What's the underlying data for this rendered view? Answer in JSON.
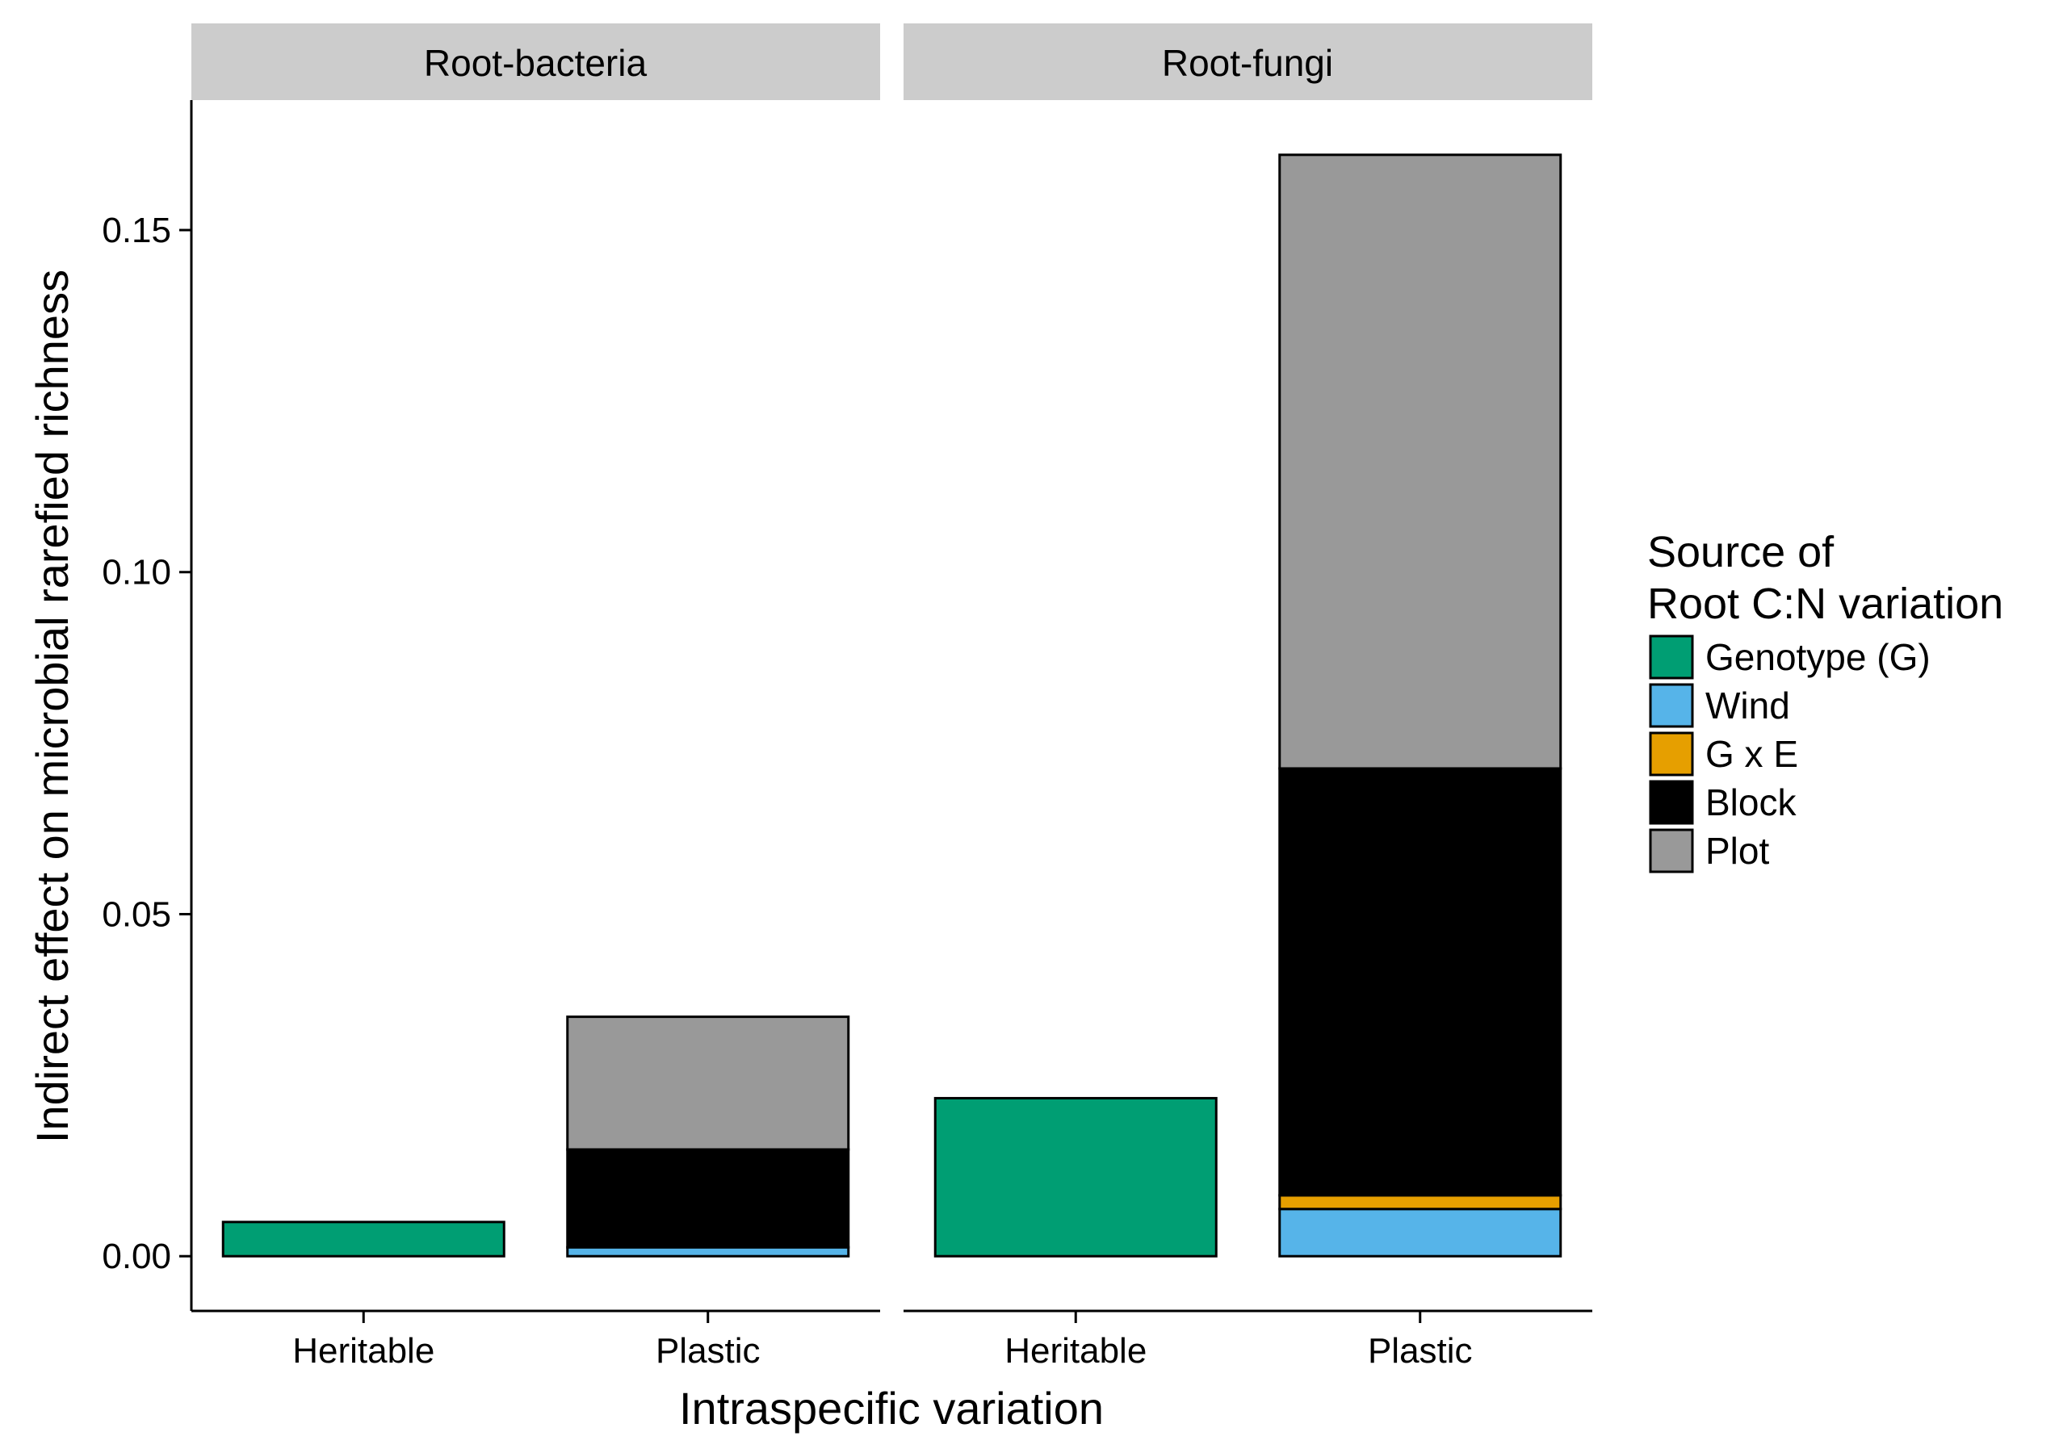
{
  "chart_data": {
    "type": "bar",
    "stacked": true,
    "xlabel": "Intraspecific variation",
    "ylabel": "Indirect effect on microbial rarefied richness",
    "ylim": [
      -0.008,
      0.169
    ],
    "y_ticks": [
      "0.00",
      "0.05",
      "0.10",
      "0.15"
    ],
    "y_tick_values": [
      0,
      0.05,
      0.1,
      0.15
    ],
    "grid": false,
    "legend_position": "right",
    "legend_title": [
      "Source of",
      "Root C:N variation"
    ],
    "categories": [
      "Heritable",
      "Plastic"
    ],
    "series": [
      {
        "name": "Genotype (G)",
        "color": "#009E73"
      },
      {
        "name": "Wind",
        "color": "#56B4E9"
      },
      {
        "name": "G x E",
        "color": "#E69F00"
      },
      {
        "name": "Block",
        "color": "#000000"
      },
      {
        "name": "Plot",
        "color": "#999999"
      }
    ],
    "panels": [
      {
        "title": "Root-bacteria",
        "values": {
          "Heritable": {
            "Genotype (G)": 0.005
          },
          "Plastic": {
            "Wind": 0.0013,
            "Block": 0.0143,
            "Plot": 0.0194
          }
        }
      },
      {
        "title": "Root-fungi",
        "values": {
          "Heritable": {
            "Genotype (G)": 0.0231
          },
          "Plastic": {
            "Wind": 0.0069,
            "G x E": 0.002,
            "Block": 0.0624,
            "Plot": 0.0897
          }
        }
      }
    ]
  }
}
